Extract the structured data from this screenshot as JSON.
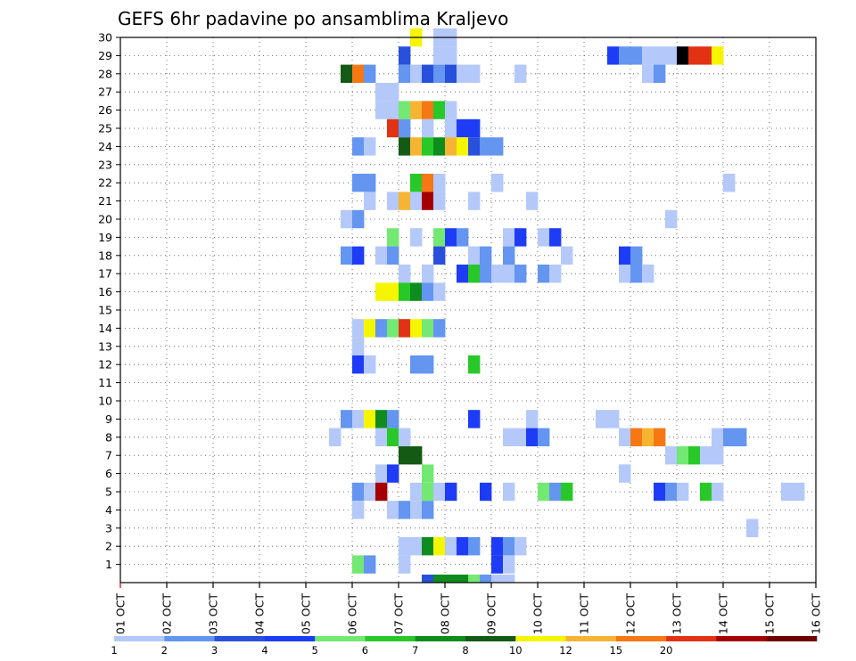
{
  "chart_data": {
    "type": "heatmap",
    "title": "GEFS 6hr padavine po ansamblima Kraljevo",
    "xlabel": "",
    "ylabel": "",
    "y_tick_labels": [
      "1",
      "2",
      "3",
      "4",
      "5",
      "6",
      "7",
      "8",
      "9",
      "10",
      "11",
      "12",
      "13",
      "14",
      "15",
      "16",
      "17",
      "18",
      "19",
      "20",
      "21",
      "22",
      "23",
      "24",
      "25",
      "26",
      "27",
      "28",
      "29",
      "30"
    ],
    "x_tick_labels": [
      "01 OCT",
      "02 OCT",
      "03 OCT",
      "04 OCT",
      "05 OCT",
      "06 OCT",
      "07 OCT",
      "08 OCT",
      "09 OCT",
      "10 OCT",
      "11 OCT",
      "12 OCT",
      "13 OCT",
      "14 OCT",
      "15 OCT",
      "16 OCT"
    ],
    "x_range_days": [
      1,
      16
    ],
    "y_range": [
      0,
      30
    ],
    "grid": true,
    "scale_labels": [
      "1",
      "2",
      "3",
      "4",
      "5",
      "6",
      "7",
      "8",
      "10",
      "12",
      "15",
      "20"
    ],
    "scale_colors": [
      "#b4c8fa",
      "#6495f0",
      "#2850dc",
      "#1e3cf5",
      "#73e873",
      "#28c828",
      "#0f8c1e",
      "#145a14",
      "#f5f500",
      "#f5b432",
      "#f57814",
      "#e13214",
      "#a50000",
      "#6e0000"
    ],
    "cells": [
      {
        "m": 30,
        "d": [
          7.25
        ],
        "v": [
          9
        ]
      },
      {
        "m": 30,
        "d": [
          7.75,
          8.0
        ],
        "v": [
          1,
          1
        ]
      },
      {
        "m": 29,
        "d": [
          7.0
        ],
        "v": [
          3
        ]
      },
      {
        "m": 29,
        "d": [
          7.75,
          8.0
        ],
        "v": [
          1,
          1
        ]
      },
      {
        "m": 29,
        "d": [
          11.5,
          11.75,
          12.0,
          12.25,
          12.5,
          12.75,
          13.0,
          13.25,
          13.5,
          13.75
        ],
        "v": [
          4,
          2,
          2,
          1,
          1,
          1,
          15,
          12,
          12,
          9
        ]
      },
      {
        "m": 28,
        "d": [
          5.75,
          6.0,
          6.25
        ],
        "v": [
          8,
          11,
          2
        ]
      },
      {
        "m": 28,
        "d": [
          7.0,
          7.25,
          7.5,
          7.75,
          8.0,
          8.25,
          8.5
        ],
        "v": [
          2,
          1,
          3,
          2,
          3,
          1,
          1
        ]
      },
      {
        "m": 28,
        "d": [
          9.5,
          12.25,
          12.5
        ],
        "v": [
          1,
          1,
          2
        ]
      },
      {
        "m": 27,
        "d": [
          6.5,
          6.75
        ],
        "v": [
          1,
          1
        ]
      },
      {
        "m": 26,
        "d": [
          6.5,
          6.75,
          7.0,
          7.25,
          7.5,
          7.75,
          8.0
        ],
        "v": [
          1,
          1,
          5,
          10,
          11,
          6,
          1
        ]
      },
      {
        "m": 25,
        "d": [
          6.75,
          7.0,
          7.5,
          8.0,
          8.25,
          8.5
        ],
        "v": [
          12,
          2,
          1,
          1,
          4,
          4
        ]
      },
      {
        "m": 24,
        "d": [
          6.0,
          6.25
        ],
        "v": [
          2,
          1
        ]
      },
      {
        "m": 24,
        "d": [
          7.0,
          7.25,
          7.5,
          7.75,
          8.0,
          8.25,
          8.5,
          8.75,
          9.0
        ],
        "v": [
          8,
          10,
          6,
          7,
          10,
          9,
          3,
          2,
          2
        ]
      },
      {
        "m": 22,
        "d": [
          6.0,
          6.25,
          7.25,
          7.5,
          7.75,
          9.0,
          14.0
        ],
        "v": [
          2,
          2,
          6,
          11,
          1,
          1,
          1
        ]
      },
      {
        "m": 21,
        "d": [
          6.25,
          6.75,
          7.0,
          7.25,
          7.5,
          7.75,
          8.5,
          9.75
        ],
        "v": [
          1,
          1,
          10,
          1,
          13,
          1,
          1,
          1
        ]
      },
      {
        "m": 20,
        "d": [
          5.75,
          6.0,
          12.75
        ],
        "v": [
          1,
          2,
          1
        ]
      },
      {
        "m": 19,
        "d": [
          6.75,
          7.25,
          7.75,
          8.0,
          8.25,
          9.25,
          9.5,
          10.0,
          10.25
        ],
        "v": [
          5,
          1,
          5,
          4,
          2,
          1,
          4,
          1,
          4
        ]
      },
      {
        "m": 18,
        "d": [
          5.75,
          6.0,
          6.5,
          6.75,
          7.75,
          8.5,
          8.75,
          9.25,
          10.5,
          11.75,
          12.0
        ],
        "v": [
          2,
          4,
          1,
          2,
          3,
          1,
          2,
          2,
          1,
          4,
          2
        ]
      },
      {
        "m": 17,
        "d": [
          7.0,
          7.5,
          8.25,
          8.5,
          8.75,
          9.0,
          9.25,
          9.5,
          10.0,
          10.25,
          11.75,
          12.0,
          12.25
        ],
        "v": [
          1,
          1,
          4,
          6,
          2,
          1,
          1,
          2,
          2,
          1,
          1,
          2,
          1
        ]
      },
      {
        "m": 16,
        "d": [
          6.5,
          6.75,
          7.0,
          7.25,
          7.5,
          7.75
        ],
        "v": [
          9,
          9,
          6,
          7,
          2,
          1
        ]
      },
      {
        "m": 14,
        "d": [
          6.0,
          6.25,
          6.5,
          6.75,
          7.0,
          7.25,
          7.5,
          7.75
        ],
        "v": [
          1,
          9,
          2,
          5,
          12,
          9,
          5,
          2
        ]
      },
      {
        "m": 13,
        "d": [
          6.0
        ],
        "v": [
          1
        ]
      },
      {
        "m": 12,
        "d": [
          6.0,
          6.25,
          7.25,
          7.5,
          8.5
        ],
        "v": [
          4,
          1,
          2,
          2,
          6
        ]
      },
      {
        "m": 9,
        "d": [
          5.75,
          6.0,
          6.25,
          6.5,
          6.75,
          8.5,
          9.75,
          11.25,
          11.5
        ],
        "v": [
          2,
          1,
          9,
          7,
          2,
          4,
          1,
          1,
          1
        ]
      },
      {
        "m": 8,
        "d": [
          5.5,
          6.5,
          6.75,
          7.0,
          9.25,
          9.5,
          9.75,
          10.0,
          11.75,
          12.0,
          12.25,
          12.5,
          13.75,
          14.0,
          14.25
        ],
        "v": [
          1,
          1,
          6,
          1,
          1,
          1,
          4,
          2,
          1,
          11,
          10,
          11,
          1,
          2,
          2
        ]
      },
      {
        "m": 7,
        "d": [
          7.0,
          7.25,
          12.75,
          13.0,
          13.25,
          13.5,
          13.75
        ],
        "v": [
          8,
          8,
          1,
          5,
          6,
          1,
          1
        ]
      },
      {
        "m": 6,
        "d": [
          6.5,
          6.75,
          7.5,
          11.75
        ],
        "v": [
          1,
          4,
          5,
          1
        ]
      },
      {
        "m": 5,
        "d": [
          6.0,
          6.25,
          6.5,
          7.25,
          7.5,
          7.75,
          8.0,
          8.75,
          9.25,
          10.0,
          10.25,
          10.5,
          12.5,
          12.75,
          13.0,
          13.5,
          13.75,
          15.25,
          15.5
        ],
        "v": [
          2,
          1,
          13,
          1,
          5,
          1,
          4,
          4,
          1,
          5,
          2,
          6,
          4,
          2,
          1,
          6,
          1,
          1,
          1
        ]
      },
      {
        "m": 4,
        "d": [
          6.0,
          6.75,
          7.0,
          7.25,
          7.5
        ],
        "v": [
          1,
          1,
          2,
          1,
          2
        ]
      },
      {
        "m": 3,
        "d": [
          14.5
        ],
        "v": [
          1
        ]
      },
      {
        "m": 2,
        "d": [
          7.0,
          7.25,
          7.5,
          7.75,
          8.0,
          8.25,
          8.5,
          9.0,
          9.25,
          9.5
        ],
        "v": [
          1,
          1,
          7,
          9,
          1,
          4,
          2,
          4,
          2,
          1
        ]
      },
      {
        "m": 1,
        "d": [
          6.0,
          6.25,
          7.0,
          9.0,
          9.25
        ],
        "v": [
          5,
          2,
          1,
          4,
          1
        ]
      },
      {
        "m": 0,
        "d": [
          7.5,
          7.75,
          8.0,
          8.25,
          8.5,
          8.75,
          9.0,
          9.25
        ],
        "v": [
          3,
          7,
          7,
          7,
          5,
          2,
          1,
          1
        ]
      }
    ]
  }
}
